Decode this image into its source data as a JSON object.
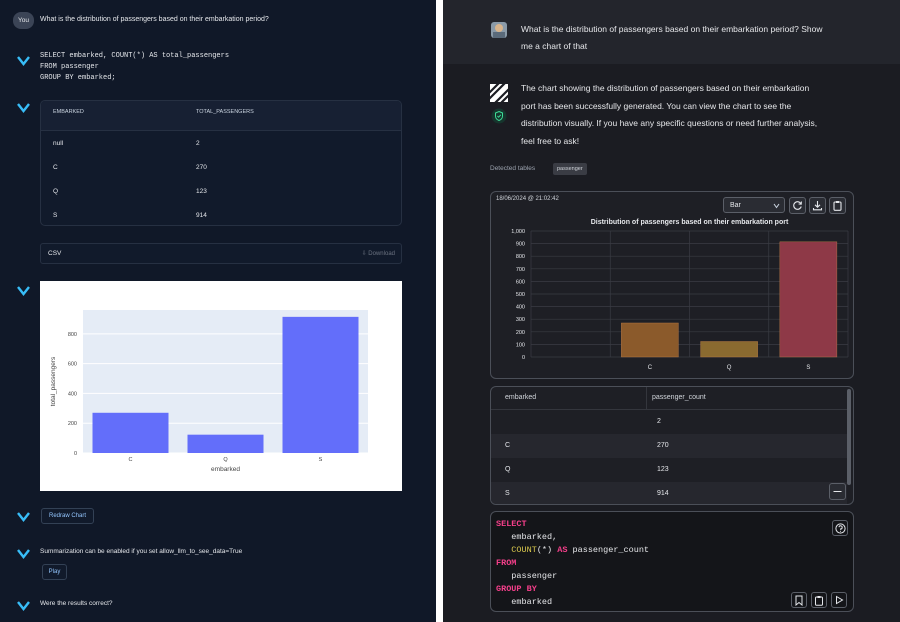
{
  "left": {
    "you_badge": "You",
    "question": "What is the distribution of passengers based on their embarkation period?",
    "sql": [
      "SELECT embarked, COUNT(*) AS total_passengers",
      "FROM passenger",
      "GROUP BY embarked;"
    ],
    "table": {
      "headers": [
        "EMBARKED",
        "TOTAL_PASSENGERS"
      ],
      "rows": [
        [
          "null",
          "2"
        ],
        [
          "C",
          "270"
        ],
        [
          "Q",
          "123"
        ],
        [
          "S",
          "914"
        ]
      ]
    },
    "csv_label": "CSV",
    "download_label": "⇩ Download",
    "redraw_label": "Redraw Chart",
    "summarization_text": "Summarization can be enabled if you set allow_llm_to_see_data=True",
    "play_label": "Play",
    "results_question": "Were the results correct?",
    "colors": {
      "bar": "#636efa",
      "accent": "#38bdf8"
    }
  },
  "right": {
    "question_line1": "What is the distribution of passengers based on their embarkation period? Show",
    "question_line2": "me a chart of that",
    "answer_lines": [
      "The chart showing the distribution of passengers based on their embarkation",
      "port has been successfully generated. You can view the chart to see the",
      "distribution visually. If you have any specific questions or need further analysis,",
      "feel free to ask!"
    ],
    "detected_label": "Detected tables",
    "detected_table": "passenger",
    "timestamp": "18/06/2024 @ 21:02:42",
    "chart_type_select": "Bar",
    "table": {
      "headers": [
        "embarked",
        "passenger_count"
      ],
      "rows": [
        [
          "",
          "2"
        ],
        [
          "C",
          "270"
        ],
        [
          "Q",
          "123"
        ],
        [
          "S",
          "914"
        ]
      ]
    },
    "sql_tokens": [
      [
        {
          "t": "SELECT",
          "c": "kw"
        }
      ],
      [
        {
          "t": "   embarked,",
          "c": "codetxt"
        }
      ],
      [
        {
          "t": "   COUNT",
          "c": "fn"
        },
        {
          "t": "(*) ",
          "c": "codetxt"
        },
        {
          "t": "AS",
          "c": "kw"
        },
        {
          "t": " passenger_count",
          "c": "codetxt"
        }
      ],
      [
        {
          "t": "FROM",
          "c": "kw"
        }
      ],
      [
        {
          "t": "   passenger",
          "c": "codetxt"
        }
      ],
      [
        {
          "t": "GROUP BY",
          "c": "kw"
        }
      ],
      [
        {
          "t": "   embarked",
          "c": "codetxt"
        }
      ]
    ],
    "colors": {
      "bar_c": "#8b5a2b",
      "bar_q": "#8a6a30",
      "bar_s": "#8e3947"
    }
  },
  "chart_data": [
    {
      "type": "bar",
      "categories": [
        "C",
        "Q",
        "S"
      ],
      "values": [
        270,
        123,
        914
      ],
      "title": "",
      "xlabel": "embarked",
      "ylabel": "total_passengers",
      "yticks": [
        "0",
        "200",
        "400",
        "600",
        "800"
      ],
      "ylim": [
        0,
        960
      ]
    },
    {
      "type": "bar",
      "categories": [
        "C",
        "Q",
        "S"
      ],
      "values": [
        270,
        123,
        914
      ],
      "title": "Distribution of passengers based on their embarkation port",
      "xlabel": "",
      "ylabel": "",
      "yticks": [
        "0",
        "100",
        "200",
        "300",
        "400",
        "500",
        "600",
        "700",
        "800",
        "900",
        "1,000"
      ],
      "ylim": [
        0,
        1000
      ]
    }
  ]
}
